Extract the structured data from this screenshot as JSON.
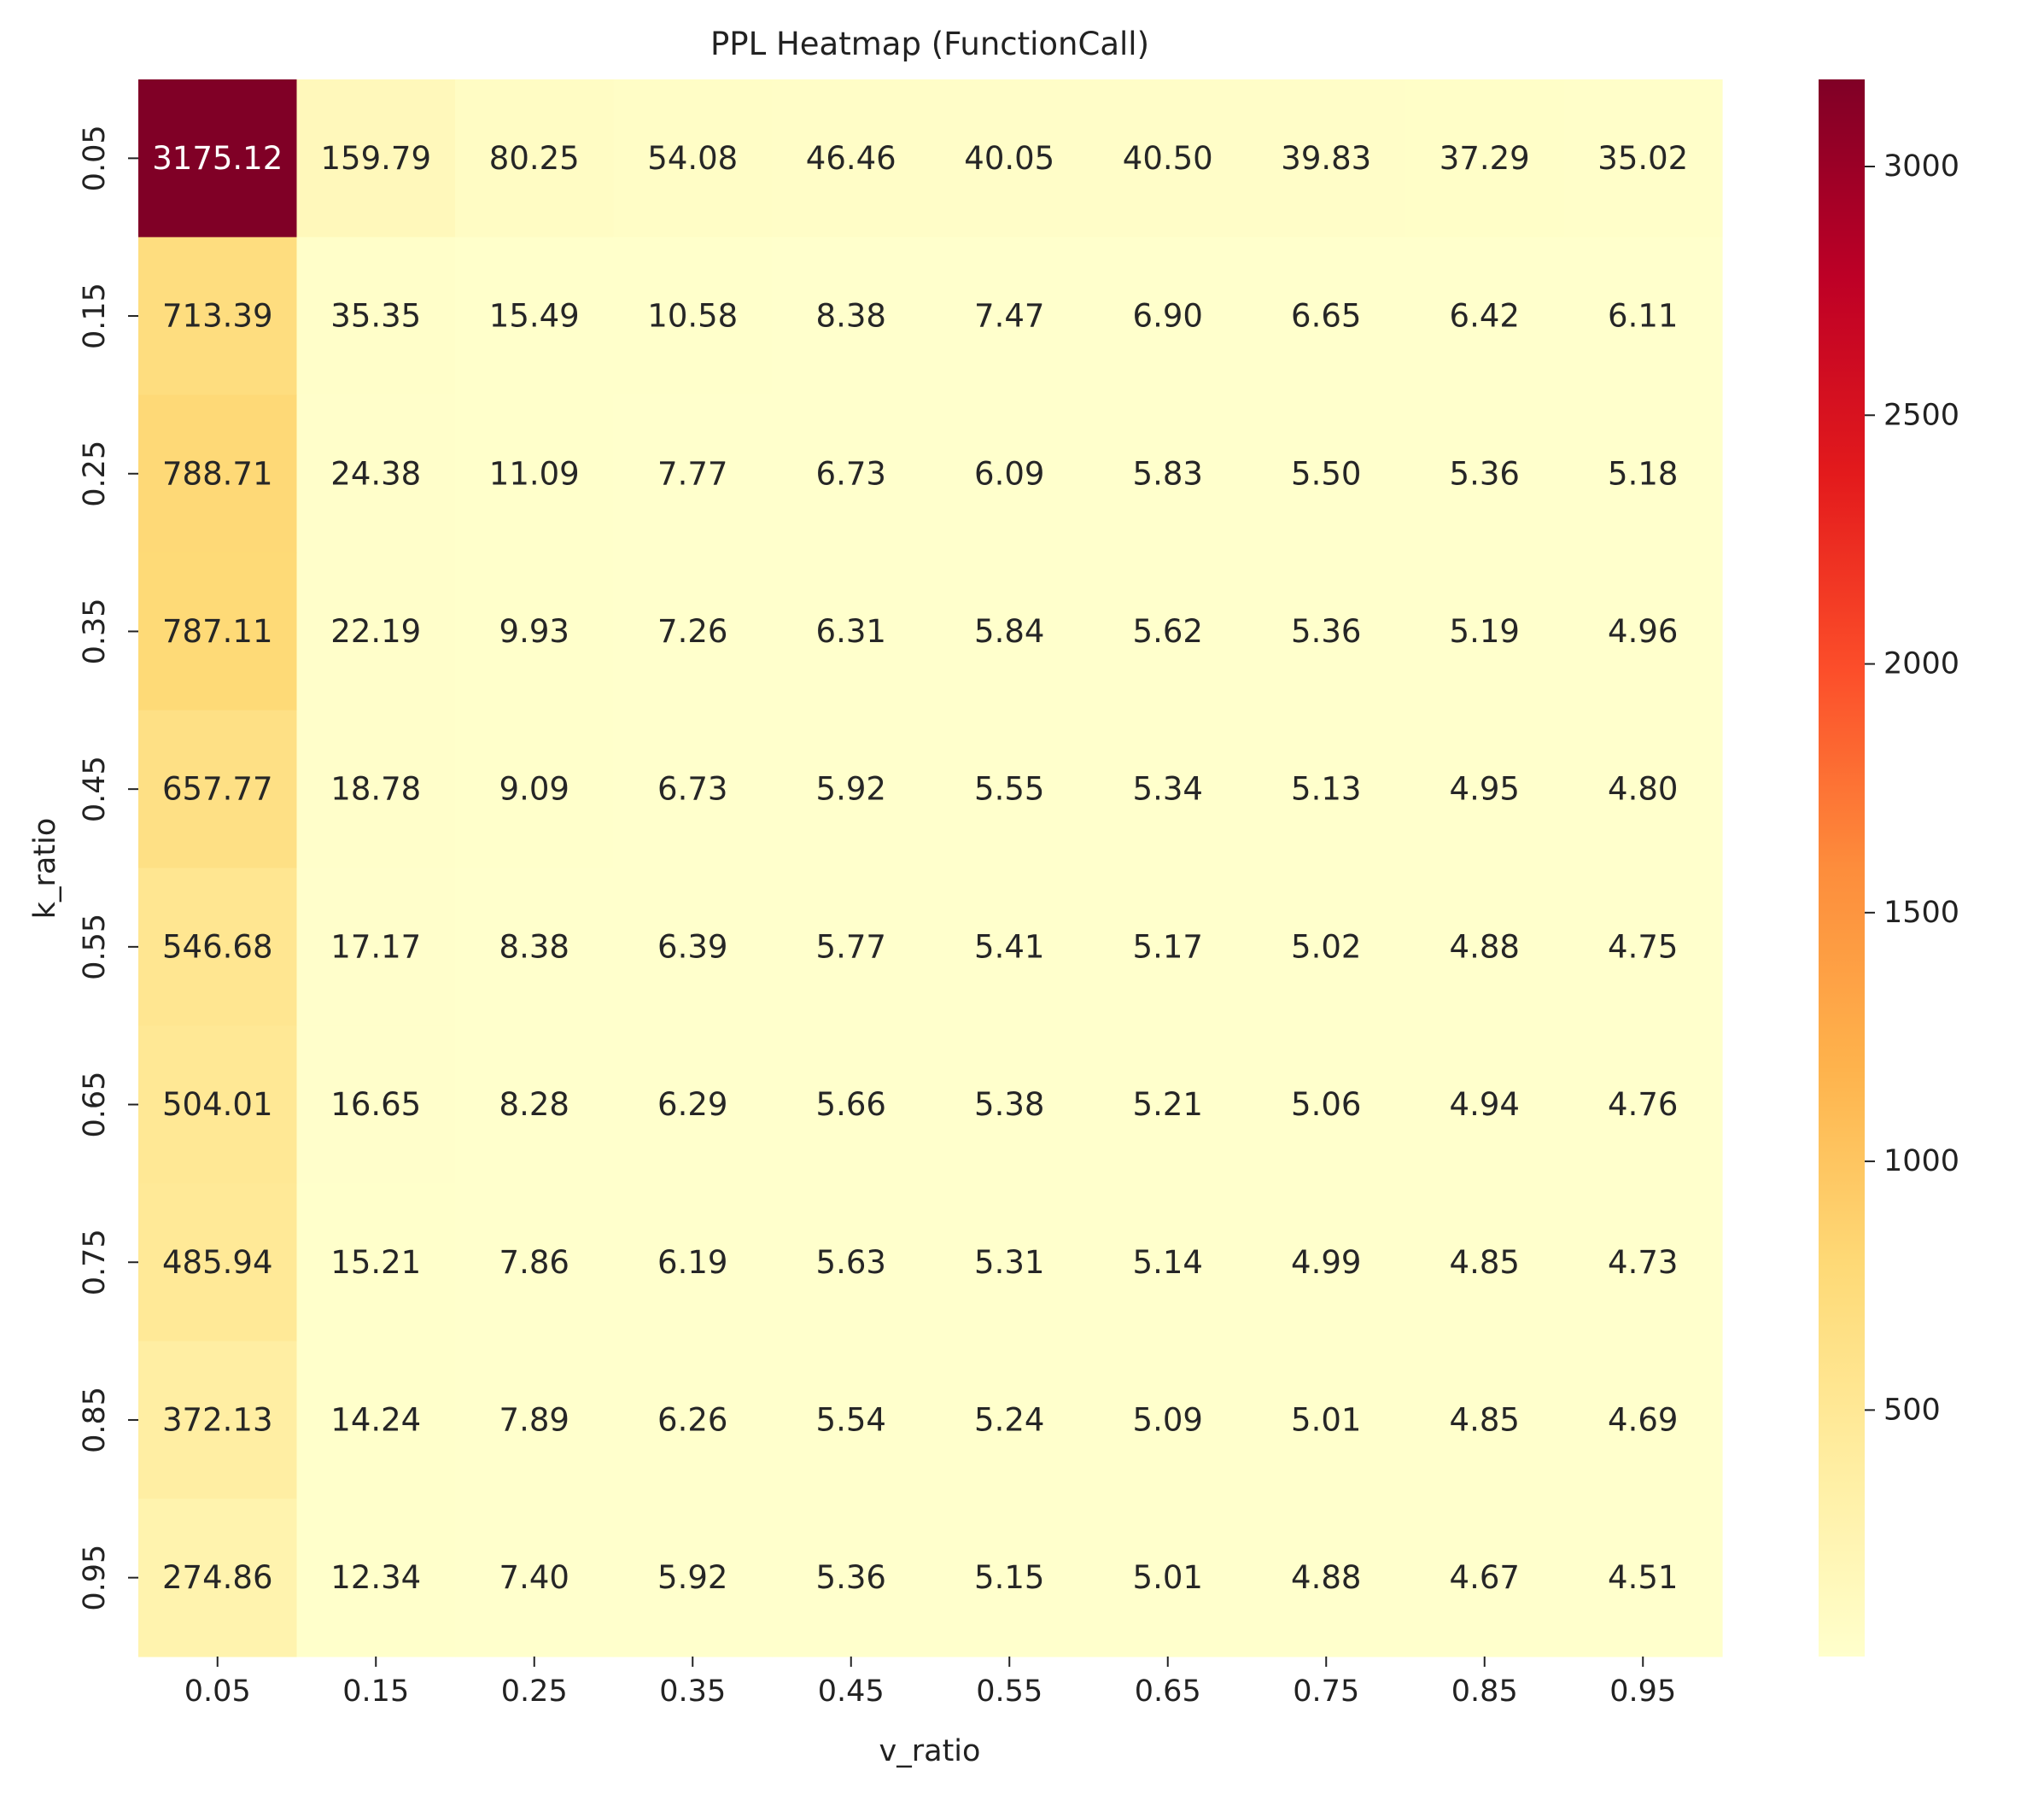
{
  "chart_data": {
    "type": "heatmap",
    "title": "PPL Heatmap (FunctionCall)",
    "xlabel": "v_ratio",
    "ylabel": "k_ratio",
    "x_categories": [
      "0.05",
      "0.15",
      "0.25",
      "0.35",
      "0.45",
      "0.55",
      "0.65",
      "0.75",
      "0.85",
      "0.95"
    ],
    "y_categories": [
      "0.05",
      "0.15",
      "0.25",
      "0.35",
      "0.45",
      "0.55",
      "0.65",
      "0.75",
      "0.85",
      "0.95"
    ],
    "values": [
      [
        3175.12,
        159.79,
        80.25,
        54.08,
        46.46,
        40.05,
        40.5,
        39.83,
        37.29,
        35.02
      ],
      [
        713.39,
        35.35,
        15.49,
        10.58,
        8.38,
        7.47,
        6.9,
        6.65,
        6.42,
        6.11
      ],
      [
        788.71,
        24.38,
        11.09,
        7.77,
        6.73,
        6.09,
        5.83,
        5.5,
        5.36,
        5.18
      ],
      [
        787.11,
        22.19,
        9.93,
        7.26,
        6.31,
        5.84,
        5.62,
        5.36,
        5.19,
        4.96
      ],
      [
        657.77,
        18.78,
        9.09,
        6.73,
        5.92,
        5.55,
        5.34,
        5.13,
        4.95,
        4.8
      ],
      [
        546.68,
        17.17,
        8.38,
        6.39,
        5.77,
        5.41,
        5.17,
        5.02,
        4.88,
        4.75
      ],
      [
        504.01,
        16.65,
        8.28,
        6.29,
        5.66,
        5.38,
        5.21,
        5.06,
        4.94,
        4.76
      ],
      [
        485.94,
        15.21,
        7.86,
        6.19,
        5.63,
        5.31,
        5.14,
        4.99,
        4.85,
        4.73
      ],
      [
        372.13,
        14.24,
        7.89,
        6.26,
        5.54,
        5.24,
        5.09,
        5.01,
        4.85,
        4.69
      ],
      [
        274.86,
        12.34,
        7.4,
        5.92,
        5.36,
        5.15,
        5.01,
        4.88,
        4.67,
        4.51
      ]
    ],
    "colormap": "YlOrRd",
    "vmin": 4.51,
    "vmax": 3175.12,
    "colorbar_ticks": [
      500,
      1000,
      1500,
      2000,
      2500,
      3000
    ],
    "annotations": "cell values, 2 decimals",
    "grid": false
  }
}
